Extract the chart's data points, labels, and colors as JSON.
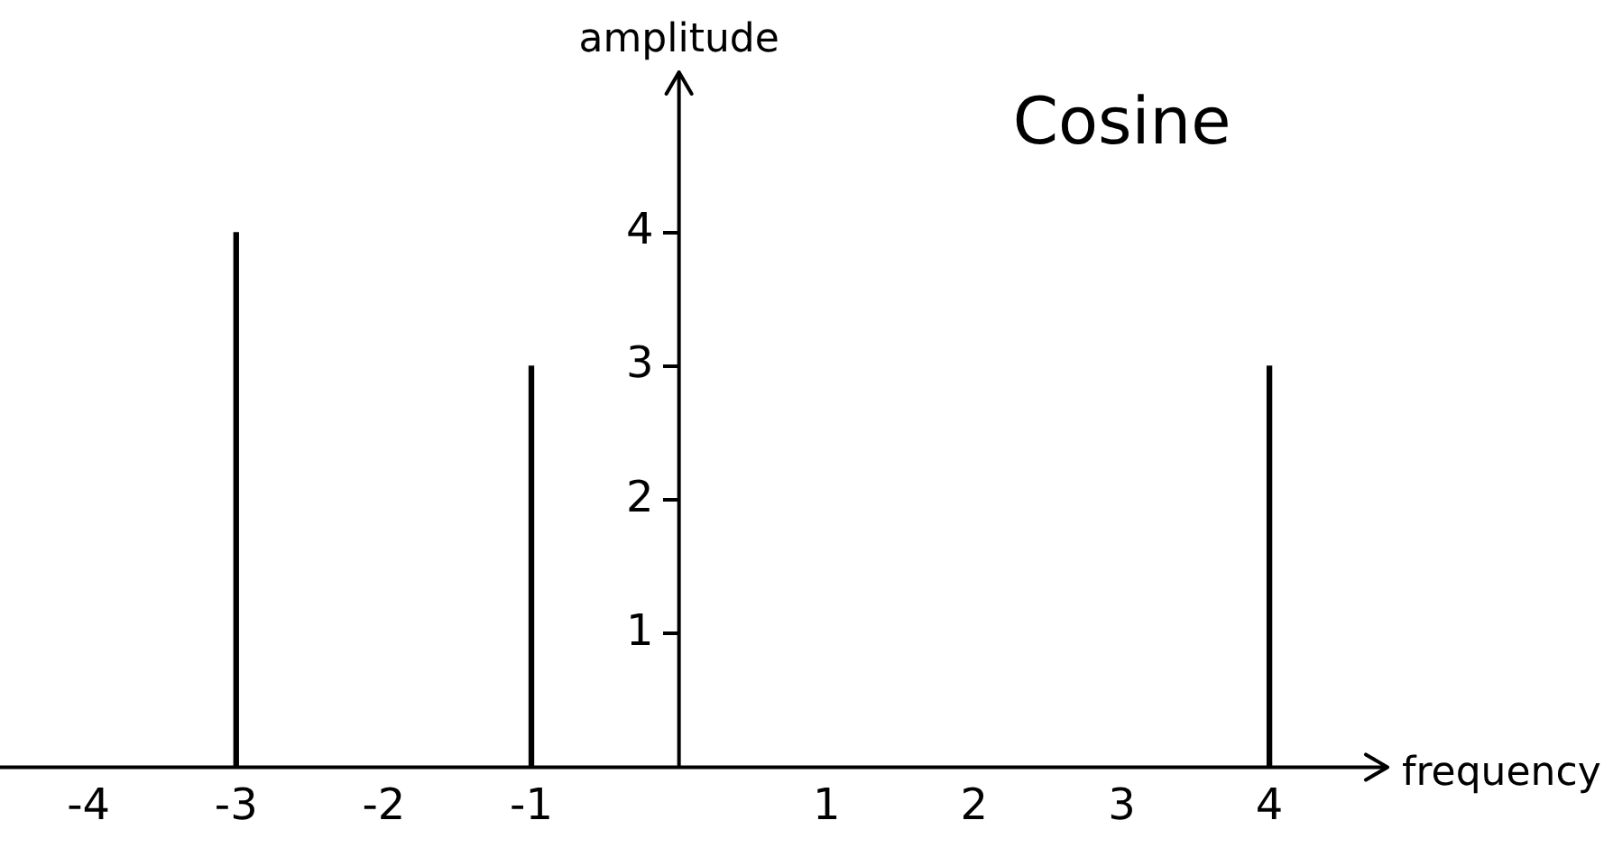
{
  "chart_data": {
    "type": "bar",
    "title": "Cosine",
    "xlabel": "frequency",
    "ylabel": "amplitude",
    "x": [
      -3,
      -1,
      4
    ],
    "values": [
      4,
      3,
      3
    ],
    "color": "#000000",
    "xlim": [
      -4.6,
      4.8
    ],
    "ylim": [
      0,
      5.2
    ],
    "xticks": [
      -4,
      -3,
      -2,
      -1,
      1,
      2,
      3,
      4
    ],
    "yticks": [
      1,
      2,
      3,
      4
    ],
    "grid": false,
    "legend": false
  }
}
